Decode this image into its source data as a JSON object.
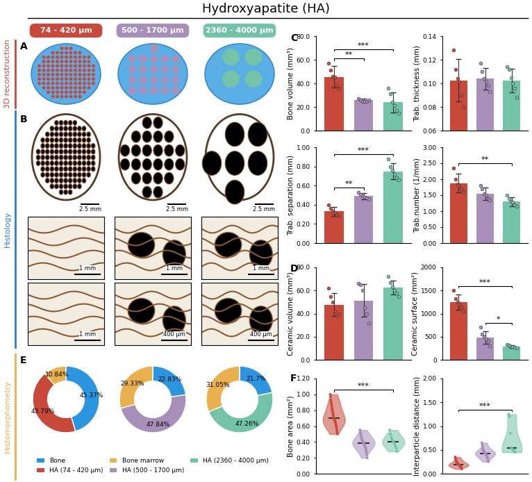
{
  "title": "Hydroxyapatite (HA)",
  "panel_labels": [
    "A",
    "B",
    "C",
    "D",
    "E",
    "F"
  ],
  "row_labels": [
    {
      "text": "3D reconstruction",
      "color": "#c8493a"
    },
    {
      "text": "Histology",
      "color": "#2b7fd0"
    },
    {
      "text": "Histomorphometry",
      "color": "#e9b04d"
    }
  ],
  "groups": [
    {
      "name": "74 - 420 µm",
      "color": "#c8493a"
    },
    {
      "name": "500 - 1700 µm",
      "color": "#a88fba"
    },
    {
      "name": "2360 - 4000 µm",
      "color": "#72c3a8"
    }
  ],
  "image_panels": {
    "histology_overview_scale": [
      "2.5 mm",
      "2.5 mm",
      "2.5 mm"
    ],
    "histology_detail_scale": [
      [
        "1 mm",
        "1 mm",
        "1 mm"
      ],
      [
        "1 mm",
        "400 µm",
        "400 µm"
      ]
    ]
  },
  "chart_data": [
    {
      "type": "bar",
      "ylabel": "Bone volume (mm³)",
      "tick_labels": "y",
      "values": [
        45.5,
        25.6,
        24.0
      ],
      "errors": [
        9.0,
        1.5,
        8.5
      ],
      "points": [
        [
          57,
          51,
          46,
          45,
          38,
          36
        ],
        [
          27,
          26,
          25,
          25,
          24.5,
          26
        ],
        [
          36,
          31,
          24,
          21,
          17,
          15
        ]
      ],
      "colors": [
        "#c8493a",
        "#a88fba",
        "#72c3a8"
      ],
      "ylim": [
        0,
        80
      ],
      "yticks": [
        {
          "value": 0,
          "label": "0.0"
        },
        {
          "value": 20,
          "label": "20.0"
        },
        {
          "value": 40,
          "label": "40.0"
        },
        {
          "value": 60,
          "label": "60.0"
        },
        {
          "value": 80,
          "label": "80.0"
        }
      ],
      "significance": [
        {
          "pair": [
            0,
            1
          ],
          "label": "**"
        },
        {
          "pair": [
            0,
            2
          ],
          "label": "***"
        }
      ]
    },
    {
      "type": "bar",
      "ylabel": "Trab. thickness (mm)",
      "tick_labels": "y",
      "values": [
        0.1025,
        0.104,
        0.1025
      ],
      "errors": [
        0.018,
        0.009,
        0.01
      ],
      "points": [
        [
          0.128,
          0.112,
          0.104,
          0.101,
          0.09,
          0.08
        ],
        [
          0.117,
          0.11,
          0.104,
          0.102,
          0.098,
          0.093
        ],
        [
          0.114,
          0.112,
          0.105,
          0.1,
          0.096,
          0.088
        ]
      ],
      "colors": [
        "#c8493a",
        "#a88fba",
        "#72c3a8"
      ],
      "ylim": [
        0.06,
        0.14
      ],
      "yticks": [
        {
          "value": 0.06,
          "label": "0.06"
        },
        {
          "value": 0.08,
          "label": "0.08"
        },
        {
          "value": 0.1,
          "label": "0.10"
        },
        {
          "value": 0.12,
          "label": "0.12"
        },
        {
          "value": 0.14,
          "label": "0.14"
        }
      ],
      "significance": []
    },
    {
      "type": "bar",
      "ylabel": "Trab. separation (mm)",
      "tick_labels": "y",
      "values": [
        0.33,
        0.49,
        0.75
      ],
      "errors": [
        0.05,
        0.03,
        0.08
      ],
      "points": [
        [
          0.4,
          0.36,
          0.33,
          0.32,
          0.3,
          0.28
        ],
        [
          0.53,
          0.51,
          0.49,
          0.48,
          0.47,
          0.46
        ],
        [
          0.88,
          0.8,
          0.76,
          0.72,
          0.68,
          0.66
        ]
      ],
      "colors": [
        "#c8493a",
        "#a88fba",
        "#72c3a8"
      ],
      "ylim": [
        0,
        1.0
      ],
      "yticks": [
        {
          "value": 0,
          "label": "0.00"
        },
        {
          "value": 0.2,
          "label": "0.20"
        },
        {
          "value": 0.4,
          "label": "0.40"
        },
        {
          "value": 0.6,
          "label": "0.60"
        },
        {
          "value": 0.8,
          "label": "0.80"
        },
        {
          "value": 1.0,
          "label": "1.00"
        }
      ],
      "significance": [
        {
          "pair": [
            0,
            1
          ],
          "label": "**"
        },
        {
          "pair": [
            0,
            2
          ],
          "label": "***"
        }
      ]
    },
    {
      "type": "bar",
      "ylabel": "Trab.number (1/mm)",
      "tick_labels": "y",
      "values": [
        1.88,
        1.55,
        1.3
      ],
      "errors": [
        0.3,
        0.2,
        0.14
      ],
      "points": [
        [
          2.35,
          2.0,
          1.85,
          1.8,
          1.7,
          1.6
        ],
        [
          1.8,
          1.7,
          1.55,
          1.5,
          1.4,
          1.35
        ],
        [
          1.5,
          1.4,
          1.3,
          1.28,
          1.2,
          1.15
        ]
      ],
      "colors": [
        "#c8493a",
        "#a88fba",
        "#72c3a8"
      ],
      "ylim": [
        0,
        3.0
      ],
      "yticks": [
        {
          "value": 0,
          "label": "0.00"
        },
        {
          "value": 0.5,
          "label": "0.50"
        },
        {
          "value": 1.0,
          "label": "1.00"
        },
        {
          "value": 1.5,
          "label": "1.50"
        },
        {
          "value": 2.0,
          "label": "2.00"
        },
        {
          "value": 2.5,
          "label": "2.50"
        },
        {
          "value": 3.0,
          "label": "3.00"
        }
      ],
      "significance": [
        {
          "pair": [
            0,
            2
          ],
          "label": "**"
        }
      ]
    },
    {
      "type": "bar",
      "ylabel": "Ceramic volume (mm³)",
      "tick_labels": "y",
      "values": [
        47.8,
        51.3,
        62.5
      ],
      "errors": [
        10,
        14,
        6
      ],
      "points": [
        [
          62,
          55,
          50,
          42,
          38,
          40
        ],
        [
          66,
          65,
          60,
          45,
          40,
          32
        ],
        [
          72,
          67,
          63,
          60,
          58,
          55
        ]
      ],
      "colors": [
        "#c8493a",
        "#a88fba",
        "#72c3a8"
      ],
      "ylim": [
        0,
        80
      ],
      "yticks": [
        {
          "value": 0,
          "label": "0.0"
        },
        {
          "value": 20,
          "label": "20.0"
        },
        {
          "value": 40,
          "label": "40.0"
        },
        {
          "value": 60,
          "label": "60.0"
        },
        {
          "value": 80,
          "label": "80.0"
        }
      ],
      "significance": []
    },
    {
      "type": "bar",
      "ylabel": "Ceramic surface (mm²)",
      "tick_labels": "y",
      "values": [
        1247,
        483,
        290
      ],
      "errors": [
        160,
        130,
        30
      ],
      "points": [
        [
          1500,
          1330,
          1250,
          1200,
          1150,
          1050
        ],
        [
          700,
          550,
          500,
          450,
          400,
          300
        ],
        [
          330,
          310,
          290,
          280,
          270,
          260
        ]
      ],
      "colors": [
        "#c8493a",
        "#a88fba",
        "#72c3a8"
      ],
      "ylim": [
        0,
        2000
      ],
      "yticks": [
        0,
        500,
        1000,
        1500,
        2000
      ],
      "significance": [
        {
          "pair": [
            1,
            2
          ],
          "label": "*"
        },
        {
          "pair": [
            0,
            2
          ],
          "label": "***"
        }
      ]
    },
    {
      "type": "pie",
      "legend": "lower center",
      "categories": [
        "Bone",
        "HA (74 - 420 µm)",
        "Bone marrow"
      ],
      "values": [
        45.37,
        43.79,
        10.84
      ],
      "value_labels": [
        "45.37%",
        "43.79%",
        "10.84%"
      ],
      "colors": [
        "#2b95e0",
        "#c8493a",
        "#e9b04d"
      ]
    },
    {
      "type": "pie",
      "legend": "lower center",
      "categories": [
        "Bone",
        "HA (500 - 1700 µm)",
        "Bone marrow"
      ],
      "values": [
        22.83,
        47.84,
        29.33
      ],
      "value_labels": [
        "22.83%",
        "47.84%",
        "29.33%"
      ],
      "colors": [
        "#2b95e0",
        "#a88fba",
        "#e9b04d"
      ]
    },
    {
      "type": "pie",
      "legend": "lower center",
      "categories": [
        "Bone",
        "HA (2360 - 4000 µm)",
        "Bone marrow"
      ],
      "values": [
        21.7,
        47.26,
        31.05
      ],
      "value_labels": [
        "21.7%",
        "47.26%",
        "31.05%"
      ],
      "colors": [
        "#2b95e0",
        "#72c3a8",
        "#e9b04d"
      ]
    },
    {
      "type": "violin",
      "ylabel": "Bone area (mm²)",
      "tick_labels": "y",
      "points": [
        [
          1.0,
          0.97,
          0.93,
          0.9,
          0.88,
          0.85,
          0.82,
          0.8,
          0.78,
          0.76,
          0.74,
          0.72,
          0.7,
          0.69,
          0.68,
          0.67,
          0.66,
          0.65,
          0.64,
          0.62,
          0.6,
          0.58,
          0.55,
          0.52,
          0.5
        ],
        [
          0.55,
          0.52,
          0.5,
          0.48,
          0.46,
          0.44,
          0.43,
          0.42,
          0.41,
          0.4,
          0.39,
          0.38,
          0.37,
          0.36,
          0.35,
          0.34,
          0.33,
          0.31,
          0.29,
          0.27,
          0.24,
          0.2
        ],
        [
          0.55,
          0.5,
          0.46,
          0.43,
          0.41,
          0.4,
          0.38,
          0.35,
          0.32,
          0.28
        ]
      ],
      "colors": [
        "#c8493a",
        "#a88fba",
        "#72c3a8"
      ],
      "ylim": [
        0,
        1.2
      ],
      "yticks": [
        {
          "value": 0,
          "label": "0.00"
        },
        {
          "value": 0.2,
          "label": "0.20"
        },
        {
          "value": 0.4,
          "label": "0.40"
        },
        {
          "value": 0.6,
          "label": "0.60"
        },
        {
          "value": 0.8,
          "label": "0.80"
        },
        {
          "value": 1.0,
          "label": "1.00"
        },
        {
          "value": 1.2,
          "label": "1.20"
        }
      ],
      "significance": [
        {
          "pair": [
            0,
            2
          ],
          "label": "***"
        }
      ]
    },
    {
      "type": "violin",
      "ylabel": "Interparticle distance (mm)",
      "tick_labels": "y",
      "points": [
        [
          0.35,
          0.32,
          0.3,
          0.28,
          0.26,
          0.25,
          0.24,
          0.23,
          0.22,
          0.21,
          0.2,
          0.2,
          0.19,
          0.19,
          0.18,
          0.18,
          0.17,
          0.17,
          0.16,
          0.16,
          0.15,
          0.14,
          0.13,
          0.12,
          0.1
        ],
        [
          0.65,
          0.6,
          0.55,
          0.52,
          0.5,
          0.48,
          0.47,
          0.46,
          0.45,
          0.44,
          0.43,
          0.42,
          0.41,
          0.4,
          0.39,
          0.38,
          0.37,
          0.35,
          0.33,
          0.31,
          0.28,
          0.25
        ],
        [
          1.25,
          1.2,
          0.85,
          0.55,
          0.52,
          0.5,
          0.48,
          0.45
        ]
      ],
      "colors": [
        "#c8493a",
        "#a88fba",
        "#72c3a8"
      ],
      "ylim": [
        0,
        2.0
      ],
      "yticks": [
        {
          "value": 0,
          "label": "0.00"
        },
        {
          "value": 0.5,
          "label": "0.50"
        },
        {
          "value": 1.0,
          "label": "1.00"
        },
        {
          "value": 1.5,
          "label": "1.50"
        },
        {
          "value": 2.0,
          "label": "2.00"
        }
      ],
      "significance": [
        {
          "pair": [
            0,
            2
          ],
          "label": "***"
        }
      ]
    }
  ]
}
